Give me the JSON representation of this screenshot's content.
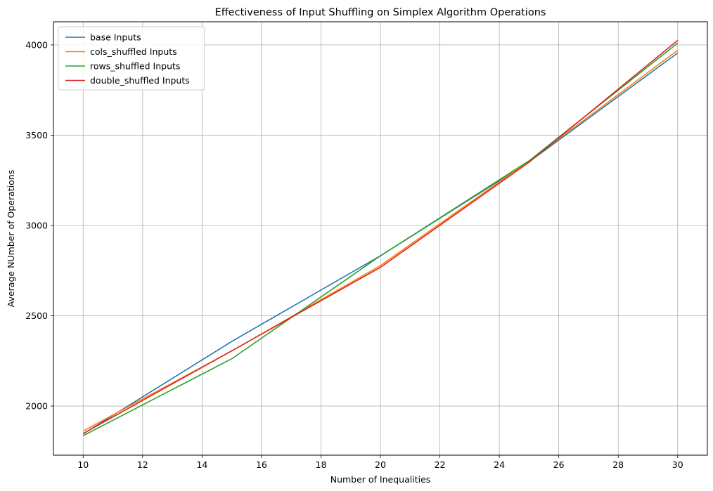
{
  "chart_data": {
    "type": "line",
    "title": "Effectiveness of Input Shuffling on Simplex Algorithm Operations",
    "xlabel": "Number of Inequalities",
    "ylabel": "Average NUmber of Operations",
    "xlim": [
      9,
      31
    ],
    "ylim": [
      1728,
      4128
    ],
    "xticks": [
      10,
      12,
      14,
      16,
      18,
      20,
      22,
      24,
      26,
      28,
      30
    ],
    "yticks": [
      2000,
      2500,
      3000,
      3500,
      4000
    ],
    "grid": true,
    "legend_position": "top-left",
    "x": [
      10,
      15,
      20,
      25,
      30
    ],
    "series": [
      {
        "name": "base Inputs",
        "color": "#1f77b4",
        "values": [
          1846,
          2358,
          2832,
          3352,
          3955
        ]
      },
      {
        "name": "cols_shuffled Inputs",
        "color": "#ff7f0e",
        "values": [
          1862,
          2305,
          2778,
          3357,
          3970
        ]
      },
      {
        "name": "rows_shuffled Inputs",
        "color": "#2ca02c",
        "values": [
          1836,
          2262,
          2832,
          3358,
          4010
        ]
      },
      {
        "name": "double_shuffled Inputs",
        "color": "#d62728",
        "values": [
          1848,
          2306,
          2768,
          3350,
          4025
        ]
      }
    ]
  }
}
